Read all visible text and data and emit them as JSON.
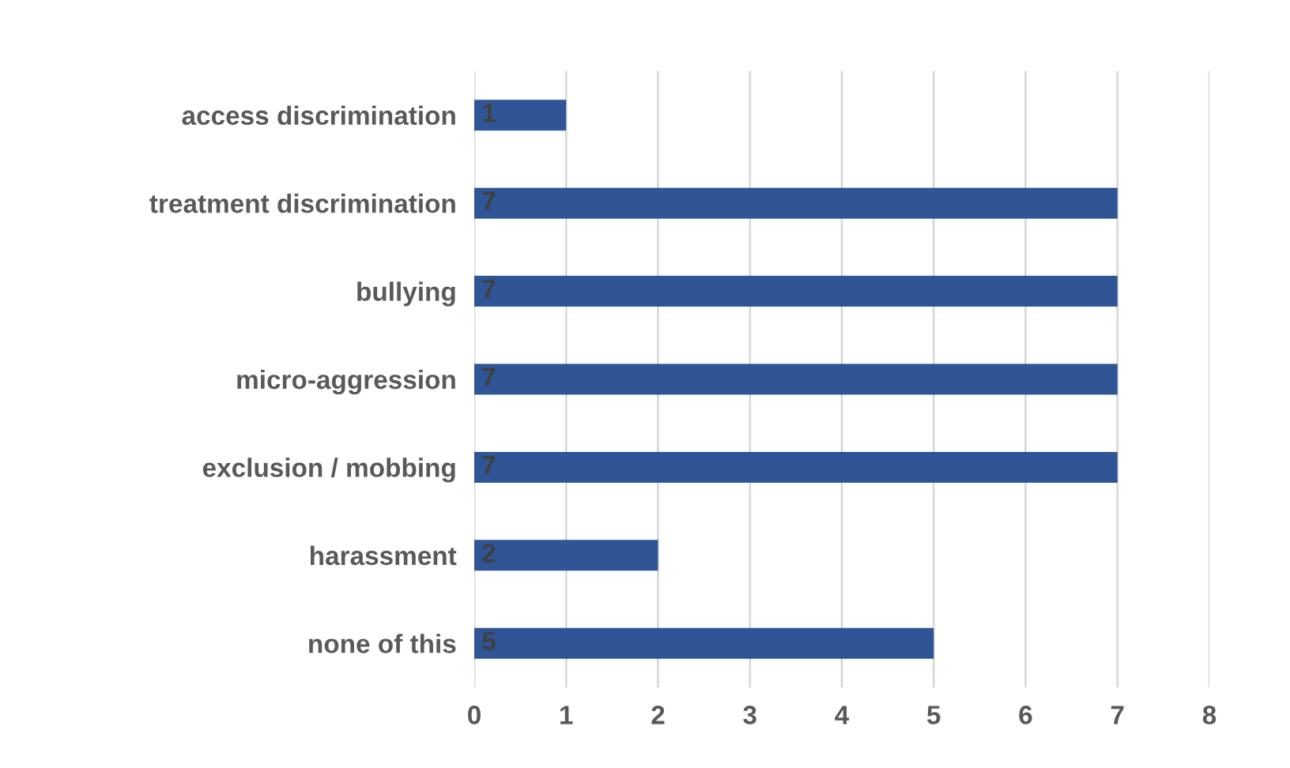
{
  "chart_data": {
    "type": "bar",
    "orientation": "horizontal",
    "categories": [
      "access discrimination",
      "treatment discrimination",
      "bullying",
      "micro-aggression",
      "exclusion / mobbing",
      "harassment",
      "none of this"
    ],
    "values": [
      1,
      7,
      7,
      7,
      7,
      2,
      5
    ],
    "color": "#2f5597",
    "xlim": [
      0,
      8
    ],
    "xticks": [
      0,
      1,
      2,
      3,
      4,
      5,
      6,
      7,
      8
    ],
    "grid": "x",
    "data_labels": true
  }
}
